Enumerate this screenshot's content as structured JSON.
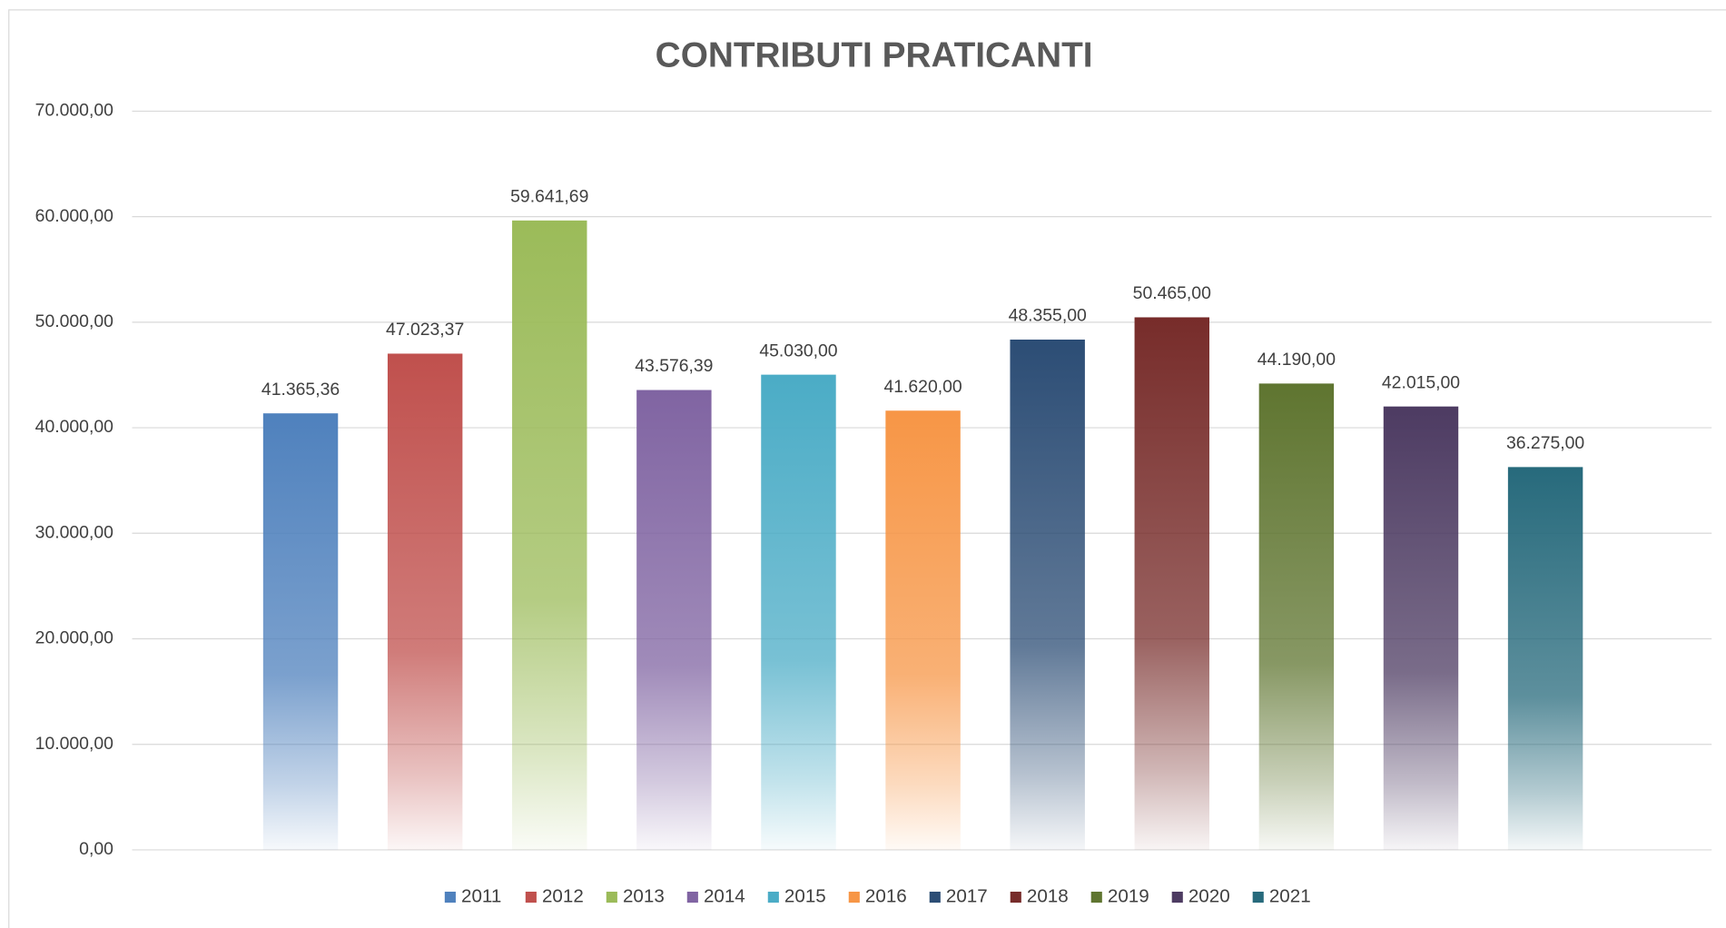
{
  "chart_data": {
    "type": "bar",
    "title": "CONTRIBUTI PRATICANTI",
    "categories": [
      "2011",
      "2012",
      "2013",
      "2014",
      "2015",
      "2016",
      "2017",
      "2018",
      "2019",
      "2020",
      "2021"
    ],
    "values": [
      41365.36,
      47023.37,
      59641.69,
      43576.39,
      45030.0,
      41620.0,
      48355.0,
      50465.0,
      44190.0,
      42015.0,
      36275.0
    ],
    "value_labels": [
      "41.365,36",
      "47.023,37",
      "59.641,69",
      "43.576,39",
      "45.030,00",
      "41.620,00",
      "48.355,00",
      "50.465,00",
      "44.190,00",
      "42.015,00",
      "36.275,00"
    ],
    "colors": [
      "#4f81bd",
      "#c0504d",
      "#9bbb59",
      "#8064a2",
      "#4bacc6",
      "#f79646",
      "#2c4d75",
      "#772c2a",
      "#5f7530",
      "#4d3b62",
      "#276a7c"
    ],
    "ylim": [
      0,
      70000
    ],
    "yticks": [
      {
        "value": 0,
        "label": "0,00"
      },
      {
        "value": 10000,
        "label": "10.000,00"
      },
      {
        "value": 20000,
        "label": "20.000,00"
      },
      {
        "value": 30000,
        "label": "30.000,00"
      },
      {
        "value": 40000,
        "label": "40.000,00"
      },
      {
        "value": 50000,
        "label": "50.000,00"
      },
      {
        "value": 60000,
        "label": "60.000,00"
      },
      {
        "value": 70000,
        "label": "70.000,00"
      }
    ],
    "grid": true,
    "legend": "bottom"
  }
}
